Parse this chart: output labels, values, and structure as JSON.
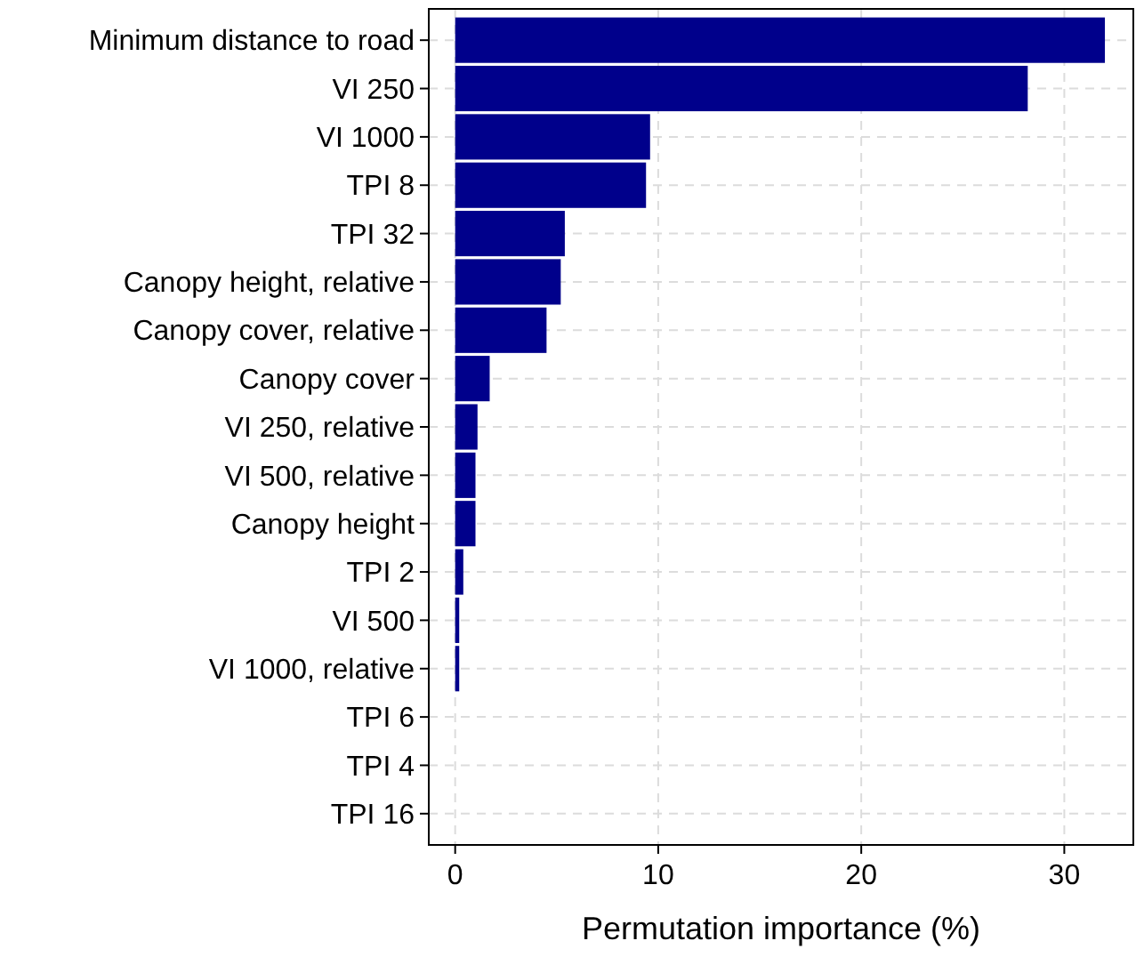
{
  "chart_data": {
    "type": "bar",
    "orientation": "horizontal",
    "xlabel": "Permutation importance (%)",
    "categories": [
      "Minimum distance to road",
      "VI 250",
      "VI 1000",
      "TPI 8",
      "TPI 32",
      "Canopy height, relative",
      "Canopy cover, relative",
      "Canopy cover",
      "VI 250, relative",
      "VI 500, relative",
      "Canopy height",
      "TPI 2",
      "VI 500",
      "VI 1000, relative",
      "TPI 6",
      "TPI 4",
      "TPI 16"
    ],
    "values": [
      32.0,
      28.2,
      9.6,
      9.4,
      5.4,
      5.2,
      4.5,
      1.7,
      1.1,
      1.0,
      1.0,
      0.4,
      0.2,
      0.2,
      0,
      0,
      0
    ],
    "color": "#00008b",
    "xlim": [
      -1.3,
      33.4
    ],
    "xticks": [
      0,
      10,
      20,
      30
    ],
    "grid": true
  }
}
